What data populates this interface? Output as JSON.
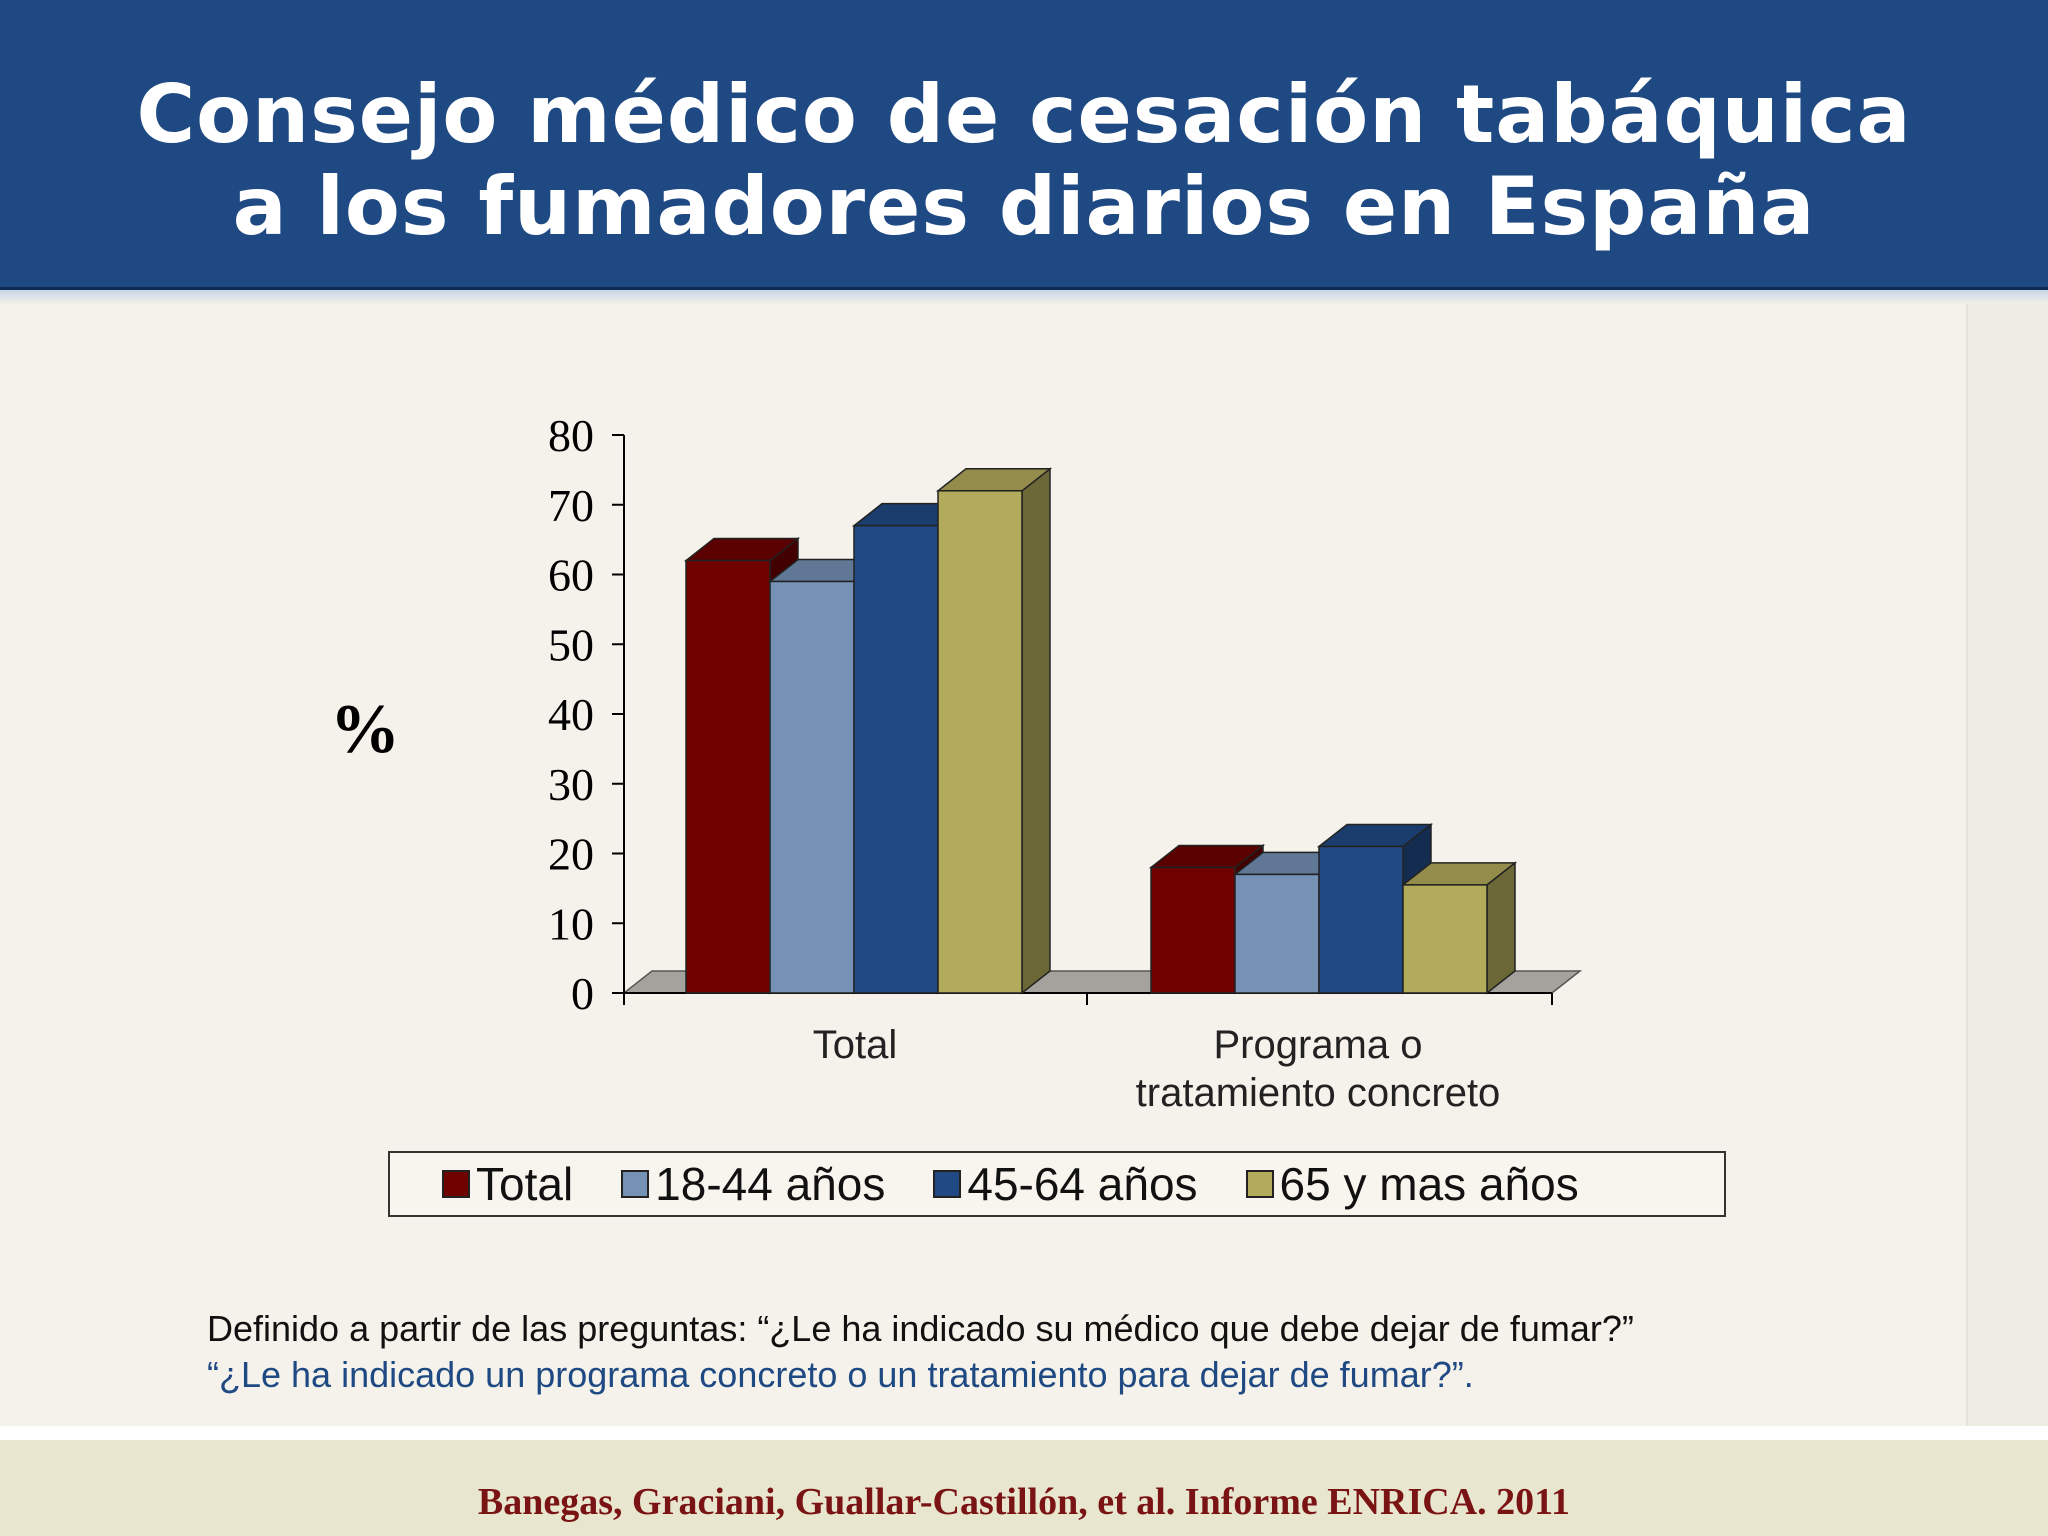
{
  "slide": {
    "title_line_1": "Consejo médico de cesación tabáquica",
    "title_line_2": "a los fumadores diarios en España",
    "note_line_1": "Definido a partir de las preguntas: “¿Le ha indicado su médico que debe dejar de fumar?”",
    "note_line_2": "“¿Le ha indicado un programa concreto o un tratamiento para dejar de fumar?”.",
    "footer": "Banegas, Graciani, Guallar-Castillón, et al. Informe ENRICA. 2011"
  },
  "chart_data": {
    "type": "bar",
    "style": "3d-clustered-column",
    "title": "",
    "xlabel": "",
    "ylabel": "%",
    "ylim": [
      0,
      80
    ],
    "yticks": [
      "0",
      "10",
      "20",
      "30",
      "40",
      "50",
      "60",
      "70",
      "80"
    ],
    "categories": [
      [
        "Total"
      ],
      [
        "Programa o",
        "tratamiento concreto"
      ]
    ],
    "series": [
      {
        "name": "Total",
        "values": [
          62,
          18
        ],
        "color": "#6e0000"
      },
      {
        "name": "18-44 años",
        "values": [
          59,
          17
        ],
        "color": "#7591b6"
      },
      {
        "name": "45-64 años",
        "values": [
          67,
          21
        ],
        "color": "#214a85"
      },
      {
        "name": "65 y mas años",
        "values": [
          72,
          15.5
        ],
        "color": "#b3ab5c"
      }
    ],
    "legend_position": "bottom",
    "grid": false
  }
}
